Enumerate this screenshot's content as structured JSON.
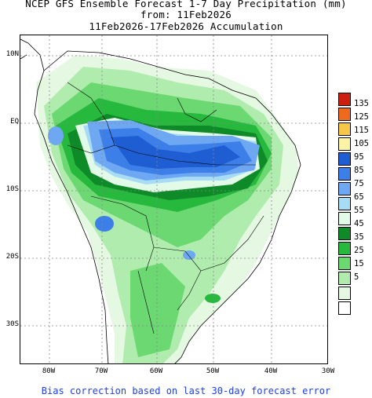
{
  "title": {
    "line1": "NCEP GFS Ensemble Forecast 1-7 Day Precipitation (mm)",
    "line2": "from: 11Feb2026",
    "line3": "11Feb2026-17Feb2026 Accumulation"
  },
  "map": {
    "lat_labels": [
      "10N",
      "EQ",
      "10S",
      "20S",
      "30S"
    ],
    "lon_labels": [
      "80W",
      "70W",
      "60W",
      "50W",
      "40W",
      "30W"
    ]
  },
  "legend": {
    "levels": [
      {
        "label": "135",
        "color": "#cc1f10"
      },
      {
        "label": "125",
        "color": "#f06a1e"
      },
      {
        "label": "115",
        "color": "#f5c84a"
      },
      {
        "label": "105",
        "color": "#fcf2a8"
      },
      {
        "label": "95",
        "color": "#1e5ed2"
      },
      {
        "label": "85",
        "color": "#3c7fe8"
      },
      {
        "label": "75",
        "color": "#6ea8f2"
      },
      {
        "label": "65",
        "color": "#a8dcf4"
      },
      {
        "label": "55",
        "color": "#e2fae8"
      },
      {
        "label": "45",
        "color": "#0f8a28"
      },
      {
        "label": "35",
        "color": "#27b83e"
      },
      {
        "label": "25",
        "color": "#6bd872"
      },
      {
        "label": "15",
        "color": "#b0ecae"
      },
      {
        "label": "5",
        "color": "#e4f8e2"
      },
      {
        "label": "",
        "color": "#ffffff"
      }
    ]
  },
  "footer": {
    "text": "Bias correction based on last 30-day forecast error"
  }
}
